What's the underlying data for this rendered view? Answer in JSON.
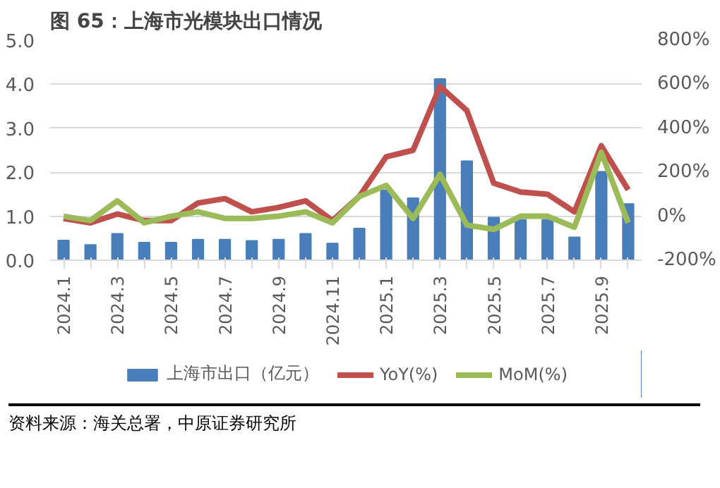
{
  "chart_data": {
    "type": "bar",
    "title": "图 65：上海市光模块出口情况",
    "categories": [
      "2024.1",
      null,
      "2024.3",
      null,
      "2024.5",
      null,
      "2024.7",
      null,
      "2024.9",
      null,
      "2024.11",
      null,
      "2025.1",
      null,
      "2025.3",
      null,
      "2025.5",
      null,
      "2025.7",
      null,
      "2025.9",
      null
    ],
    "series": [
      {
        "name": "上海市出口（亿元）",
        "color": "#4a7ebb",
        "values": [
          0.45,
          0.35,
          0.6,
          0.4,
          0.4,
          0.47,
          0.47,
          0.44,
          0.47,
          0.6,
          0.38,
          0.72,
          1.59,
          1.41,
          4.12,
          2.25,
          0.97,
          0.92,
          0.92,
          0.52,
          2.01,
          1.28
        ]
      },
      {
        "name": "YoY(%)",
        "type": "line",
        "axis": "y2",
        "color": "#c0504d",
        "values": [
          -10,
          -30,
          10,
          -20,
          -20,
          60,
          80,
          20,
          40,
          70,
          -20,
          90,
          270,
          300,
          590,
          480,
          150,
          110,
          100,
          20,
          320,
          120
        ]
      },
      {
        "name": "MoM(%)",
        "type": "line",
        "axis": "y2",
        "color": "#9bbb59",
        "values": [
          0,
          -20,
          70,
          -30,
          0,
          20,
          -10,
          -10,
          0,
          20,
          -30,
          90,
          140,
          -10,
          190,
          -40,
          -60,
          0,
          0,
          -50,
          290,
          -30
        ]
      }
    ],
    "ylim": [
      0,
      5
    ],
    "yticks": [
      {
        "value": 0,
        "label": "0.0"
      },
      {
        "value": 1,
        "label": "1.0"
      },
      {
        "value": 2,
        "label": "2.0"
      },
      {
        "value": 3,
        "label": "3.0"
      },
      {
        "value": 4,
        "label": "4.0"
      },
      {
        "value": 5,
        "label": "5.0"
      }
    ],
    "y2lim": [
      -200,
      800
    ],
    "y2ticks": [
      {
        "value": -200,
        "label": "-200%"
      },
      {
        "value": 0,
        "label": "0%"
      },
      {
        "value": 200,
        "label": "200%"
      },
      {
        "value": 400,
        "label": "400%"
      },
      {
        "value": 600,
        "label": "600%"
      },
      {
        "value": 800,
        "label": "800%"
      }
    ],
    "grid": "y",
    "legend": "bottom",
    "annotations": [
      "资料来源：海关总署，中原证券研究所"
    ]
  }
}
